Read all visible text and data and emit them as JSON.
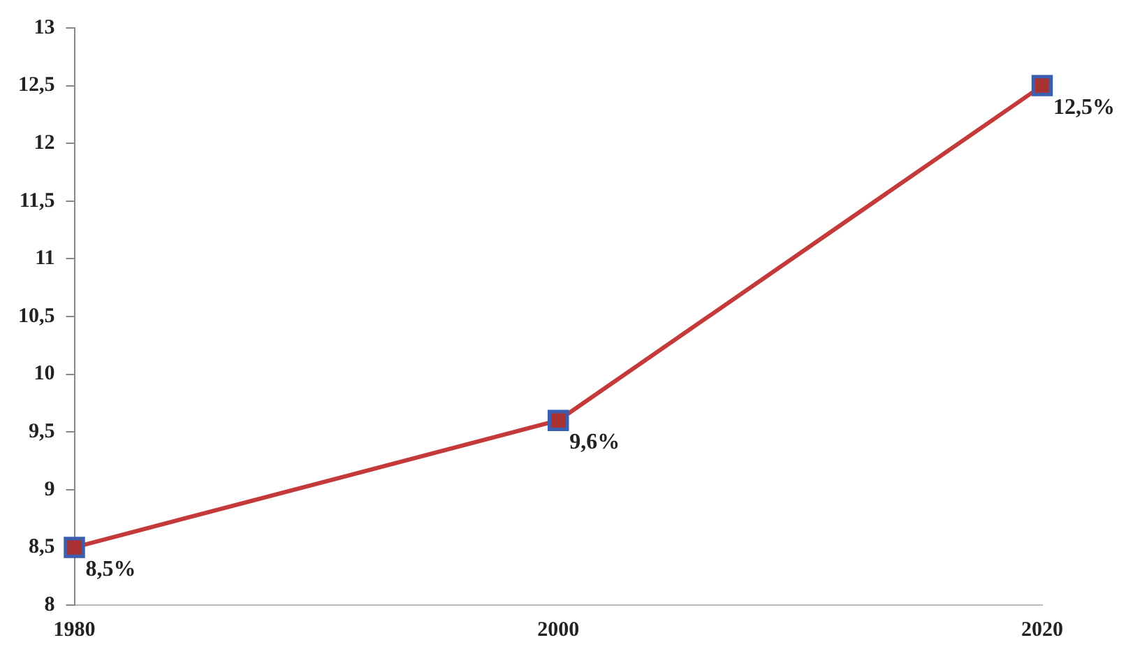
{
  "chart_data": {
    "type": "line",
    "categories": [
      "1980",
      "2000",
      "2020"
    ],
    "series": [
      {
        "color": "#c43a3a",
        "values": [
          8.5,
          9.6,
          12.5
        ],
        "value_labels": [
          "8,5%",
          "9,6%",
          "12,5%"
        ]
      }
    ],
    "ylim": [
      8,
      13
    ],
    "yticks": [
      8,
      {
        "value": 8.5,
        "label": "8,5"
      },
      9,
      {
        "value": 9.5,
        "label": "9,5"
      },
      10,
      {
        "value": 10.5,
        "label": "10,5"
      },
      11,
      {
        "value": 11.5,
        "label": "11,5"
      },
      12,
      {
        "value": 12.5,
        "label": "12,5"
      },
      13
    ],
    "marker": "square",
    "line_style": "solid",
    "grid": false,
    "legend": false
  }
}
